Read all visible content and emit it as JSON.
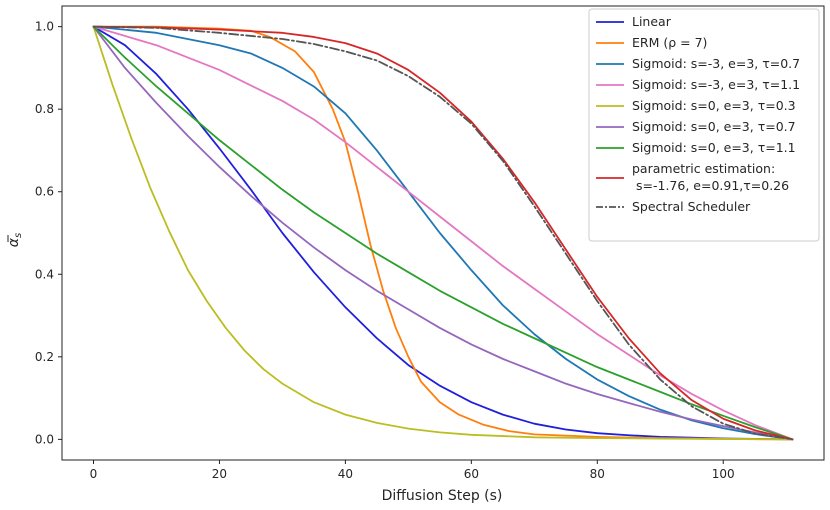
{
  "chart_data": {
    "type": "line",
    "title": "",
    "xlabel": "Diffusion Step (s)",
    "ylabel_base": "α",
    "ylabel_sub": "s",
    "xlim": [
      -5,
      116
    ],
    "ylim": [
      -0.05,
      1.05
    ],
    "xticks": [
      0,
      20,
      40,
      60,
      80,
      100
    ],
    "yticks": [
      0.0,
      0.2,
      0.4,
      0.6,
      0.8,
      1.0
    ],
    "x_max": 111,
    "legend_position": "top-right",
    "grid": false,
    "series": [
      {
        "id": "linear",
        "name": "Linear",
        "color": "#1f1fdc",
        "dash": "solid",
        "points": [
          [
            0,
            1.0
          ],
          [
            5,
            0.955
          ],
          [
            10,
            0.885
          ],
          [
            15,
            0.8
          ],
          [
            20,
            0.705
          ],
          [
            25,
            0.605
          ],
          [
            30,
            0.5
          ],
          [
            35,
            0.405
          ],
          [
            40,
            0.32
          ],
          [
            45,
            0.245
          ],
          [
            50,
            0.18
          ],
          [
            55,
            0.13
          ],
          [
            60,
            0.09
          ],
          [
            65,
            0.06
          ],
          [
            70,
            0.038
          ],
          [
            75,
            0.024
          ],
          [
            80,
            0.015
          ],
          [
            85,
            0.01
          ],
          [
            90,
            0.006
          ],
          [
            95,
            0.004
          ],
          [
            100,
            0.002
          ],
          [
            105,
            0.001
          ],
          [
            111,
            0.0
          ]
        ]
      },
      {
        "id": "erm",
        "name": "ERM (ρ = 7)",
        "color": "#ff7f0e",
        "dash": "solid",
        "points": [
          [
            0,
            1.0
          ],
          [
            10,
            1.0
          ],
          [
            20,
            0.995
          ],
          [
            25,
            0.99
          ],
          [
            28,
            0.975
          ],
          [
            32,
            0.94
          ],
          [
            35,
            0.89
          ],
          [
            38,
            0.8
          ],
          [
            40,
            0.72
          ],
          [
            42,
            0.6
          ],
          [
            44,
            0.47
          ],
          [
            46,
            0.36
          ],
          [
            48,
            0.27
          ],
          [
            50,
            0.2
          ],
          [
            52,
            0.14
          ],
          [
            55,
            0.09
          ],
          [
            58,
            0.06
          ],
          [
            62,
            0.035
          ],
          [
            66,
            0.02
          ],
          [
            70,
            0.012
          ],
          [
            80,
            0.006
          ],
          [
            90,
            0.003
          ],
          [
            100,
            0.001
          ],
          [
            111,
            0.0
          ]
        ]
      },
      {
        "id": "sig1",
        "name": "Sigmoid: s=-3, e=3, τ=0.7",
        "color": "#1f77b4",
        "dash": "solid",
        "points": [
          [
            0,
            1.0
          ],
          [
            10,
            0.985
          ],
          [
            20,
            0.955
          ],
          [
            25,
            0.935
          ],
          [
            30,
            0.9
          ],
          [
            35,
            0.855
          ],
          [
            40,
            0.79
          ],
          [
            45,
            0.7
          ],
          [
            50,
            0.6
          ],
          [
            55,
            0.5
          ],
          [
            60,
            0.41
          ],
          [
            65,
            0.325
          ],
          [
            70,
            0.255
          ],
          [
            75,
            0.195
          ],
          [
            80,
            0.145
          ],
          [
            85,
            0.105
          ],
          [
            90,
            0.072
          ],
          [
            95,
            0.046
          ],
          [
            100,
            0.027
          ],
          [
            105,
            0.013
          ],
          [
            111,
            0.0
          ]
        ]
      },
      {
        "id": "sig2",
        "name": "Sigmoid: s=-3, e=3, τ=1.1",
        "color": "#e377c2",
        "dash": "solid",
        "points": [
          [
            0,
            1.0
          ],
          [
            10,
            0.955
          ],
          [
            20,
            0.895
          ],
          [
            30,
            0.82
          ],
          [
            35,
            0.775
          ],
          [
            40,
            0.72
          ],
          [
            45,
            0.66
          ],
          [
            50,
            0.6
          ],
          [
            55,
            0.54
          ],
          [
            60,
            0.48
          ],
          [
            65,
            0.42
          ],
          [
            70,
            0.365
          ],
          [
            75,
            0.31
          ],
          [
            80,
            0.255
          ],
          [
            85,
            0.205
          ],
          [
            90,
            0.155
          ],
          [
            95,
            0.11
          ],
          [
            100,
            0.07
          ],
          [
            105,
            0.035
          ],
          [
            111,
            0.0
          ]
        ]
      },
      {
        "id": "sig3",
        "name": "Sigmoid: s=0, e=3, τ=0.3",
        "color": "#bcbd22",
        "dash": "solid",
        "points": [
          [
            0,
            1.0
          ],
          [
            3,
            0.86
          ],
          [
            6,
            0.73
          ],
          [
            9,
            0.61
          ],
          [
            12,
            0.505
          ],
          [
            15,
            0.41
          ],
          [
            18,
            0.335
          ],
          [
            21,
            0.27
          ],
          [
            24,
            0.215
          ],
          [
            27,
            0.17
          ],
          [
            30,
            0.135
          ],
          [
            35,
            0.09
          ],
          [
            40,
            0.06
          ],
          [
            45,
            0.04
          ],
          [
            50,
            0.026
          ],
          [
            55,
            0.017
          ],
          [
            60,
            0.011
          ],
          [
            70,
            0.005
          ],
          [
            80,
            0.003
          ],
          [
            90,
            0.002
          ],
          [
            100,
            0.001
          ],
          [
            111,
            0.0
          ]
        ]
      },
      {
        "id": "sig4",
        "name": "Sigmoid: s=0, e=3, τ=0.7",
        "color": "#9467bd",
        "dash": "solid",
        "points": [
          [
            0,
            1.0
          ],
          [
            5,
            0.9
          ],
          [
            10,
            0.815
          ],
          [
            15,
            0.735
          ],
          [
            20,
            0.66
          ],
          [
            25,
            0.59
          ],
          [
            30,
            0.525
          ],
          [
            35,
            0.465
          ],
          [
            40,
            0.41
          ],
          [
            45,
            0.36
          ],
          [
            50,
            0.315
          ],
          [
            55,
            0.27
          ],
          [
            60,
            0.23
          ],
          [
            65,
            0.195
          ],
          [
            70,
            0.165
          ],
          [
            75,
            0.135
          ],
          [
            80,
            0.11
          ],
          [
            85,
            0.088
          ],
          [
            90,
            0.067
          ],
          [
            95,
            0.048
          ],
          [
            100,
            0.032
          ],
          [
            105,
            0.017
          ],
          [
            111,
            0.0
          ]
        ]
      },
      {
        "id": "sig5",
        "name": "Sigmoid: s=0, e=3, τ=1.1",
        "color": "#2ca02c",
        "dash": "solid",
        "points": [
          [
            0,
            1.0
          ],
          [
            5,
            0.925
          ],
          [
            10,
            0.855
          ],
          [
            15,
            0.79
          ],
          [
            20,
            0.725
          ],
          [
            25,
            0.665
          ],
          [
            30,
            0.605
          ],
          [
            35,
            0.55
          ],
          [
            40,
            0.5
          ],
          [
            45,
            0.45
          ],
          [
            50,
            0.405
          ],
          [
            55,
            0.36
          ],
          [
            60,
            0.32
          ],
          [
            65,
            0.28
          ],
          [
            70,
            0.245
          ],
          [
            75,
            0.21
          ],
          [
            80,
            0.175
          ],
          [
            85,
            0.145
          ],
          [
            90,
            0.115
          ],
          [
            95,
            0.085
          ],
          [
            100,
            0.057
          ],
          [
            105,
            0.03
          ],
          [
            111,
            0.0
          ]
        ]
      },
      {
        "id": "param",
        "name_line1": "parametric estimation:",
        "name_line2": "s=-1.76, e=0.91,τ=0.26",
        "color": "#d62728",
        "dash": "solid",
        "points": [
          [
            0,
            1.0
          ],
          [
            10,
            0.998
          ],
          [
            20,
            0.993
          ],
          [
            30,
            0.985
          ],
          [
            35,
            0.975
          ],
          [
            40,
            0.96
          ],
          [
            45,
            0.935
          ],
          [
            50,
            0.895
          ],
          [
            55,
            0.84
          ],
          [
            60,
            0.77
          ],
          [
            65,
            0.68
          ],
          [
            70,
            0.575
          ],
          [
            75,
            0.46
          ],
          [
            80,
            0.345
          ],
          [
            85,
            0.245
          ],
          [
            90,
            0.16
          ],
          [
            95,
            0.095
          ],
          [
            100,
            0.05
          ],
          [
            105,
            0.022
          ],
          [
            111,
            0.0
          ]
        ]
      },
      {
        "id": "spectral",
        "name": "Spectral Scheduler",
        "color": "#555555",
        "dash": "dashdot",
        "points": [
          [
            0,
            1.0
          ],
          [
            10,
            0.997
          ],
          [
            20,
            0.985
          ],
          [
            30,
            0.97
          ],
          [
            35,
            0.958
          ],
          [
            40,
            0.94
          ],
          [
            45,
            0.918
          ],
          [
            50,
            0.88
          ],
          [
            55,
            0.83
          ],
          [
            60,
            0.765
          ],
          [
            65,
            0.675
          ],
          [
            70,
            0.565
          ],
          [
            75,
            0.45
          ],
          [
            80,
            0.335
          ],
          [
            85,
            0.23
          ],
          [
            90,
            0.145
          ],
          [
            95,
            0.08
          ],
          [
            100,
            0.038
          ],
          [
            105,
            0.014
          ],
          [
            111,
            0.0
          ]
        ]
      }
    ]
  }
}
